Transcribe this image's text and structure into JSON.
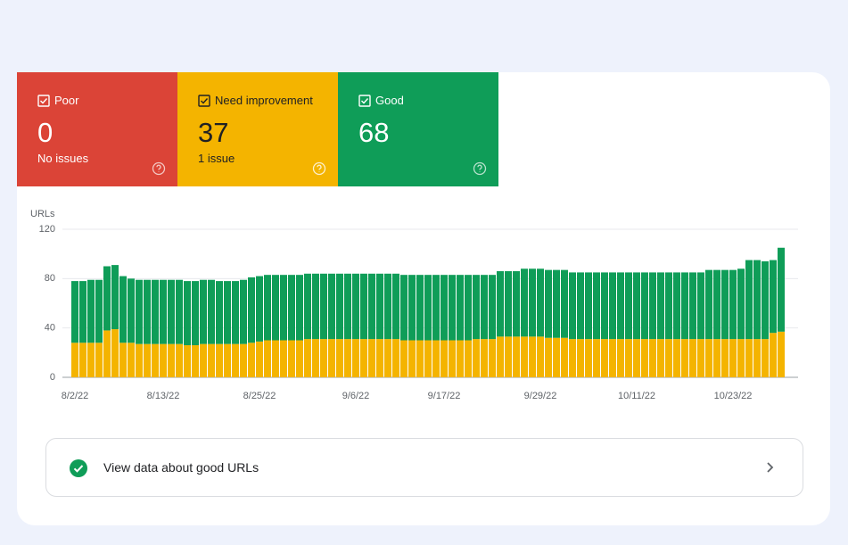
{
  "tiles": [
    {
      "label": "Poor",
      "value": "0",
      "sub": "No issues"
    },
    {
      "label": "Need improvement",
      "value": "37",
      "sub": "1 issue"
    },
    {
      "label": "Good",
      "value": "68"
    }
  ],
  "chart_data": {
    "type": "bar",
    "stacked": true,
    "ylabel": "URLs",
    "ylim": [
      0,
      120
    ],
    "yticks": [
      0,
      40,
      80,
      120
    ],
    "grid": true,
    "categories": [
      "8/2/22",
      null,
      null,
      null,
      null,
      null,
      null,
      null,
      null,
      null,
      null,
      "8/13/22",
      null,
      null,
      null,
      null,
      null,
      null,
      null,
      null,
      null,
      null,
      null,
      "8/25/22",
      null,
      null,
      null,
      null,
      null,
      null,
      null,
      null,
      null,
      null,
      null,
      "9/6/22",
      null,
      null,
      null,
      null,
      null,
      null,
      null,
      null,
      null,
      null,
      "9/17/22",
      null,
      null,
      null,
      null,
      null,
      null,
      null,
      null,
      null,
      null,
      null,
      "9/29/22",
      null,
      null,
      null,
      null,
      null,
      null,
      null,
      null,
      null,
      null,
      null,
      "10/11/22",
      null,
      null,
      null,
      null,
      null,
      null,
      null,
      null,
      null,
      null,
      null,
      "10/23/22",
      null,
      null,
      null,
      null,
      null,
      null
    ],
    "series": [
      {
        "color": "#f4b400",
        "values": [
          28,
          28,
          28,
          28,
          38,
          39,
          28,
          28,
          27,
          27,
          27,
          27,
          27,
          27,
          26,
          26,
          27,
          27,
          27,
          27,
          27,
          27,
          28,
          29,
          30,
          30,
          30,
          30,
          30,
          31,
          31,
          31,
          31,
          31,
          31,
          31,
          31,
          31,
          31,
          31,
          31,
          30,
          30,
          30,
          30,
          30,
          30,
          30,
          30,
          30,
          31,
          31,
          31,
          33,
          33,
          33,
          33,
          33,
          33,
          32,
          32,
          32,
          31,
          31,
          31,
          31,
          31,
          31,
          31,
          31,
          31,
          31,
          31,
          31,
          31,
          31,
          31,
          31,
          31,
          31,
          31,
          31,
          31,
          31,
          31,
          31,
          31,
          36,
          37
        ]
      },
      {
        "color": "#0f9d58",
        "values": [
          50,
          50,
          51,
          51,
          52,
          52,
          54,
          52,
          52,
          52,
          52,
          52,
          52,
          52,
          52,
          52,
          52,
          52,
          51,
          51,
          51,
          52,
          53,
          53,
          53,
          53,
          53,
          53,
          53,
          53,
          53,
          53,
          53,
          53,
          53,
          53,
          53,
          53,
          53,
          53,
          53,
          53,
          53,
          53,
          53,
          53,
          53,
          53,
          53,
          53,
          52,
          52,
          52,
          53,
          53,
          53,
          55,
          55,
          55,
          55,
          55,
          55,
          54,
          54,
          54,
          54,
          54,
          54,
          54,
          54,
          54,
          54,
          54,
          54,
          54,
          54,
          54,
          54,
          54,
          56,
          56,
          56,
          56,
          57,
          64,
          64,
          63,
          59,
          68
        ]
      }
    ]
  },
  "button": {
    "label": "View data about good URLs"
  }
}
